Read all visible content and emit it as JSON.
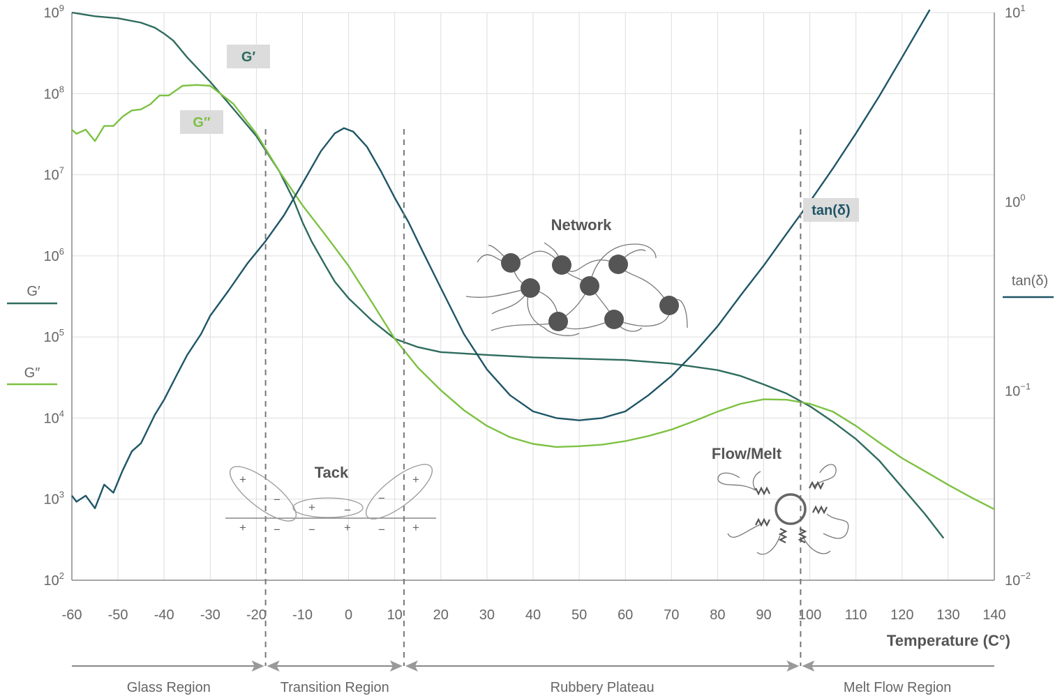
{
  "chart_data": {
    "type": "line",
    "x_axis": {
      "label": "Temperature (C°)",
      "range": [
        -60,
        140
      ],
      "ticks": [
        -60,
        -50,
        -40,
        -30,
        -20,
        -10,
        0,
        10,
        20,
        30,
        40,
        50,
        60,
        70,
        80,
        90,
        100,
        110,
        120,
        130,
        140
      ]
    },
    "y_left": {
      "scale": "log",
      "range": [
        100,
        1000000000
      ],
      "ticks": [
        {
          "value": 100,
          "base": "10",
          "exp": "2"
        },
        {
          "value": 1000,
          "base": "10",
          "exp": "3"
        },
        {
          "value": 10000,
          "base": "10",
          "exp": "4"
        },
        {
          "value": 100000,
          "base": "10",
          "exp": "5"
        },
        {
          "value": 1000000,
          "base": "10",
          "exp": "6"
        },
        {
          "value": 10000000,
          "base": "10",
          "exp": "7"
        },
        {
          "value": 100000000,
          "base": "10",
          "exp": "8"
        },
        {
          "value": 1000000000,
          "base": "10",
          "exp": "9"
        }
      ]
    },
    "y_right": {
      "scale": "log",
      "range": [
        0.01,
        10
      ],
      "ticks": [
        {
          "value": 10,
          "base": "10",
          "exp": "1"
        },
        {
          "value": 1,
          "base": "10",
          "exp": "0"
        },
        {
          "value": 0.1,
          "base": "10",
          "exp": "−1"
        },
        {
          "value": 0.01,
          "base": "10",
          "exp": "−2"
        }
      ]
    },
    "grid": true,
    "series": [
      {
        "name": "G′",
        "axis": "left",
        "color": "#2e6b5e",
        "x": [
          -60,
          -55,
          -50,
          -45,
          -42,
          -40,
          -38,
          -35,
          -30,
          -25,
          -20,
          -15,
          -12,
          -10,
          -8,
          -5,
          -3,
          0,
          5,
          10,
          15,
          20,
          30,
          40,
          50,
          60,
          70,
          80,
          85,
          90,
          95,
          100,
          105,
          110,
          115,
          120,
          125,
          129
        ],
        "y": [
          1000000000,
          900000000,
          850000000,
          750000000,
          650000000,
          550000000,
          450000000,
          280000000,
          140000000,
          65000000,
          30000000,
          11000000,
          5000000,
          2600000,
          1500000,
          750000,
          480000,
          300000,
          160000,
          95000,
          75000,
          65000,
          60000,
          56000,
          54000,
          52000,
          47000,
          39000,
          33000,
          26000,
          20000,
          14000,
          9000,
          5500,
          3000,
          1400,
          650,
          330
        ]
      },
      {
        "name": "G″",
        "axis": "left",
        "color": "#7dc142",
        "x": [
          -60,
          -59,
          -57,
          -55,
          -53,
          -51,
          -49,
          -47,
          -45,
          -43,
          -41,
          -39,
          -36,
          -33,
          -30,
          -25,
          -20,
          -15,
          -10,
          -5,
          0,
          5,
          10,
          15,
          20,
          25,
          30,
          35,
          40,
          45,
          50,
          55,
          60,
          65,
          70,
          75,
          80,
          85,
          90,
          95,
          100,
          105,
          110,
          115,
          120,
          125,
          130,
          135,
          140
        ],
        "y": [
          36000000,
          32000000,
          36000000,
          26000000,
          40000000,
          40000000,
          52000000,
          62000000,
          64000000,
          74000000,
          95000000,
          95000000,
          125000000,
          128000000,
          125000000,
          75000000,
          32000000,
          11000000,
          4200000,
          1800000,
          750000,
          270000,
          95000,
          42000,
          22000,
          12500,
          8000,
          5800,
          4800,
          4400,
          4500,
          4700,
          5200,
          6000,
          7200,
          9200,
          12000,
          15000,
          17000,
          16800,
          15000,
          12000,
          8000,
          5000,
          3200,
          2200,
          1500,
          1050,
          750
        ]
      },
      {
        "name": "tan(δ)",
        "axis": "right",
        "color": "#1e5566",
        "x": [
          -60,
          -59,
          -57,
          -55,
          -53,
          -51,
          -49,
          -47,
          -45,
          -42,
          -40,
          -37,
          -35,
          -32,
          -30,
          -26,
          -22,
          -18,
          -14,
          -10,
          -6,
          -3,
          -1,
          1,
          4,
          7,
          10,
          13,
          16,
          20,
          25,
          30,
          35,
          40,
          45,
          50,
          55,
          60,
          65,
          70,
          75,
          80,
          85,
          90,
          95,
          100,
          105,
          110,
          115,
          120,
          126
        ],
        "y": [
          0.028,
          0.026,
          0.028,
          0.024,
          0.032,
          0.029,
          0.038,
          0.048,
          0.053,
          0.075,
          0.09,
          0.125,
          0.155,
          0.2,
          0.25,
          0.34,
          0.47,
          0.62,
          0.85,
          1.25,
          1.85,
          2.3,
          2.45,
          2.35,
          1.95,
          1.45,
          1.05,
          0.78,
          0.55,
          0.35,
          0.2,
          0.13,
          0.095,
          0.078,
          0.072,
          0.07,
          0.072,
          0.078,
          0.095,
          0.12,
          0.16,
          0.22,
          0.32,
          0.46,
          0.68,
          1.0,
          1.5,
          2.3,
          3.6,
          5.8,
          11
        ]
      }
    ],
    "curve_labels": [
      "G′",
      "G″",
      "tan(δ)"
    ],
    "legend": [
      {
        "name": "G′",
        "side": "left",
        "color": "#2e6b5e"
      },
      {
        "name": "G″",
        "side": "left",
        "color": "#7dc142"
      },
      {
        "name": "tan(δ)",
        "side": "right",
        "color": "#1e5566"
      }
    ],
    "transitions": [
      -18,
      12,
      98
    ],
    "regions": [
      {
        "label": "Glass Region",
        "from": -60,
        "to": -18
      },
      {
        "label": "Transition Region",
        "from": -18,
        "to": 12
      },
      {
        "label": "Rubbery Plateau",
        "from": 12,
        "to": 98
      },
      {
        "label": "Melt Flow Region",
        "from": 98,
        "to": 140
      }
    ],
    "illustrations": {
      "tack": {
        "title": "Tack",
        "signs": [
          "+",
          "−",
          "+",
          "−",
          "−",
          "+",
          "+",
          "−",
          "−",
          "+",
          "−",
          "+"
        ]
      },
      "network": {
        "title": "Network"
      },
      "flow": {
        "title": "Flow/Melt"
      }
    }
  }
}
